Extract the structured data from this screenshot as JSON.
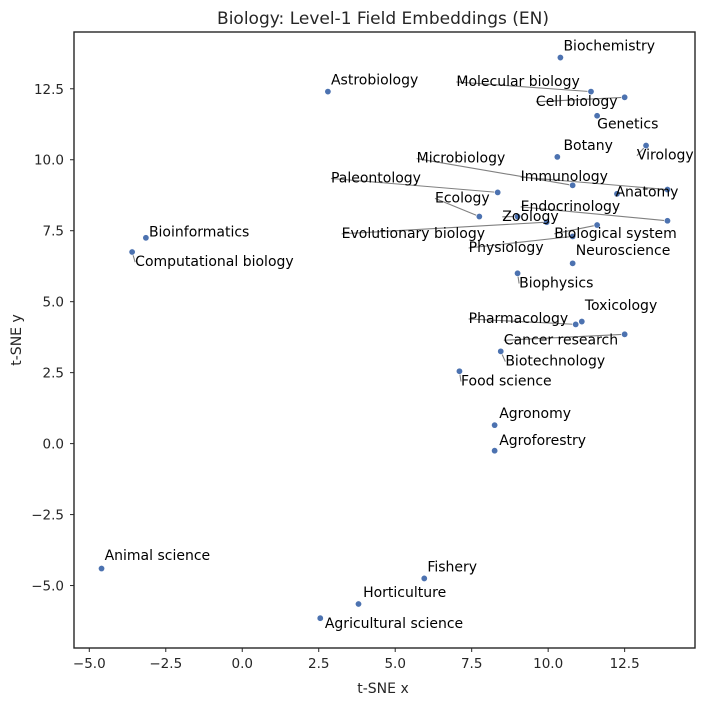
{
  "chart_data": {
    "type": "scatter",
    "title": "Biology: Level-1 Field Embeddings (EN)",
    "xlabel": "t-SNE x",
    "ylabel": "t-SNE y",
    "xlim": [
      -5.5,
      14.8
    ],
    "ylim": [
      -7.2,
      14.5
    ],
    "xticks": [
      -5.0,
      -2.5,
      0.0,
      2.5,
      5.0,
      7.5,
      10.0,
      12.5
    ],
    "xtick_labels": [
      "−5.0",
      "−2.5",
      "0.0",
      "2.5",
      "5.0",
      "7.5",
      "10.0",
      "12.5"
    ],
    "yticks": [
      -5.0,
      -2.5,
      0.0,
      2.5,
      5.0,
      7.5,
      10.0,
      12.5
    ],
    "ytick_labels": [
      "−5.0",
      "−2.5",
      "0.0",
      "2.5",
      "5.0",
      "7.5",
      "10.0",
      "12.5"
    ],
    "grid": false,
    "point_color": "#4c72b0",
    "leader_color": "#808080",
    "points": [
      {
        "label": "Biochemistry",
        "x": 10.4,
        "y": 13.6,
        "lx": 10.5,
        "ly": 13.85
      },
      {
        "label": "Molecular biology",
        "x": 11.4,
        "y": 12.4,
        "lx": 7.0,
        "ly": 12.6
      },
      {
        "label": "Cell biology",
        "x": 12.5,
        "y": 12.2,
        "lx": 9.6,
        "ly": 11.9
      },
      {
        "label": "Genetics",
        "x": 11.6,
        "y": 11.55,
        "lx": 11.6,
        "ly": 11.1
      },
      {
        "label": "Virology",
        "x": 13.2,
        "y": 10.5,
        "lx": 12.9,
        "ly": 10.0
      },
      {
        "label": "Astrobiology",
        "x": 2.8,
        "y": 12.4,
        "lx": 2.9,
        "ly": 12.65
      },
      {
        "label": "Botany",
        "x": 10.3,
        "y": 10.1,
        "lx": 10.5,
        "ly": 10.35
      },
      {
        "label": "Microbiology",
        "x": 10.8,
        "y": 9.1,
        "lx": 5.7,
        "ly": 9.9
      },
      {
        "label": "Immunology",
        "x": 13.9,
        "y": 8.95,
        "lx": 9.1,
        "ly": 9.25
      },
      {
        "label": "Anatomy",
        "x": 12.25,
        "y": 8.8,
        "lx": 12.2,
        "ly": 8.7
      },
      {
        "label": "Paleontology",
        "x": 8.35,
        "y": 8.85,
        "lx": 2.9,
        "ly": 9.2
      },
      {
        "label": "Ecology",
        "x": 7.75,
        "y": 8.0,
        "lx": 6.3,
        "ly": 8.5
      },
      {
        "label": "Endocrinology",
        "x": 13.9,
        "y": 7.85,
        "lx": 9.1,
        "ly": 8.2
      },
      {
        "label": "Zoology",
        "x": 9.0,
        "y": 8.0,
        "lx": 8.5,
        "ly": 7.85
      },
      {
        "label": "Evolutionary biology",
        "x": 9.95,
        "y": 7.8,
        "lx": 3.25,
        "ly": 7.25
      },
      {
        "label": "Biological system",
        "x": 11.6,
        "y": 7.7,
        "lx": 10.2,
        "ly": 7.25
      },
      {
        "label": "Physiology",
        "x": 10.8,
        "y": 7.3,
        "lx": 7.4,
        "ly": 6.75
      },
      {
        "label": "Neuroscience",
        "x": 10.8,
        "y": 6.35,
        "lx": 10.9,
        "ly": 6.65
      },
      {
        "label": "Biophysics",
        "x": 9.0,
        "y": 6.0,
        "lx": 9.05,
        "ly": 5.5
      },
      {
        "label": "Bioinformatics",
        "x": -3.15,
        "y": 7.25,
        "lx": -3.05,
        "ly": 7.3
      },
      {
        "label": "Computational biology",
        "x": -3.6,
        "y": 6.75,
        "lx": -3.5,
        "ly": 6.25
      },
      {
        "label": "Toxicology",
        "x": 11.1,
        "y": 4.3,
        "lx": 11.2,
        "ly": 4.7
      },
      {
        "label": "Pharmacology",
        "x": 10.9,
        "y": 4.2,
        "lx": 7.4,
        "ly": 4.25
      },
      {
        "label": "Cancer research",
        "x": 12.5,
        "y": 3.85,
        "lx": 8.55,
        "ly": 3.5
      },
      {
        "label": "Biotechnology",
        "x": 8.45,
        "y": 3.25,
        "lx": 8.6,
        "ly": 2.75
      },
      {
        "label": "Food science",
        "x": 7.1,
        "y": 2.55,
        "lx": 7.15,
        "ly": 2.05
      },
      {
        "label": "Agronomy",
        "x": 8.25,
        "y": 0.65,
        "lx": 8.4,
        "ly": 0.9
      },
      {
        "label": "Agroforestry",
        "x": 8.25,
        "y": -0.25,
        "lx": 8.4,
        "ly": -0.05
      },
      {
        "label": "Animal science",
        "x": -4.6,
        "y": -4.4,
        "lx": -4.5,
        "ly": -4.1
      },
      {
        "label": "Fishery",
        "x": 5.95,
        "y": -4.75,
        "lx": 6.05,
        "ly": -4.5
      },
      {
        "label": "Horticulture",
        "x": 3.8,
        "y": -5.65,
        "lx": 3.95,
        "ly": -5.4
      },
      {
        "label": "Agricultural science",
        "x": 2.55,
        "y": -6.15,
        "lx": 2.7,
        "ly": -6.5
      }
    ]
  }
}
